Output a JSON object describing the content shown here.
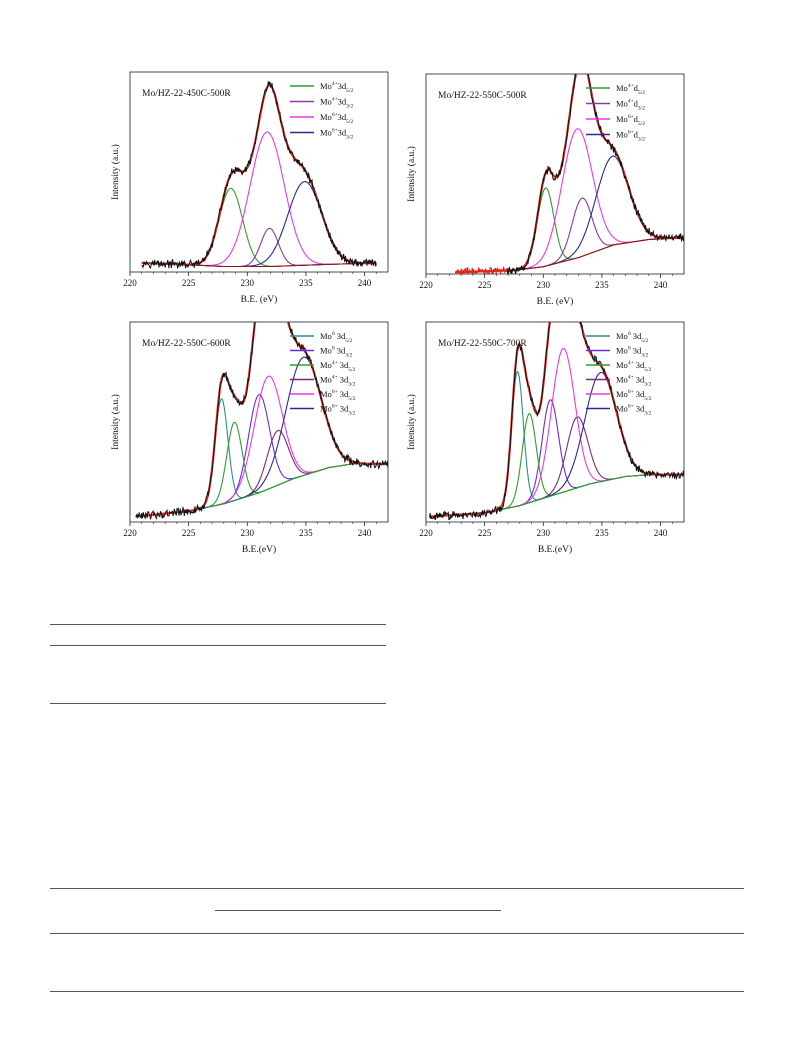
{
  "colors": {
    "raw": "#111111",
    "fit": "#d8302a",
    "background": "#8a1a1a",
    "green": "#2e9e2e",
    "purple": "#8a3aa0",
    "magenta": "#e83ae0",
    "navy": "#2a2a8a",
    "teal": "#2a8f8f",
    "violet": "#6a2ae0",
    "dkpurple": "#7a2a7a",
    "red_bg": "#e0241c"
  },
  "chart_data": [
    {
      "type": "line",
      "title": "Mo/HZ-22-450C-500R",
      "xlabel": "B.E. (eV)",
      "ylabel": "Intensity (a.u.)",
      "xlim": [
        220,
        242
      ],
      "ylim": [
        0,
        1.1
      ],
      "xticks": [
        "220",
        "225",
        "230",
        "235",
        "240"
      ],
      "x_range": [
        221,
        241
      ],
      "raw_color": "raw",
      "background_color": "background",
      "fit_color": "fit",
      "background": [
        [
          221,
          0.05
        ],
        [
          225,
          0.04
        ],
        [
          228,
          0.03
        ],
        [
          232,
          0.03
        ],
        [
          236,
          0.04
        ],
        [
          241,
          0.05
        ]
      ],
      "components": [
        {
          "name": "Mo4+3d5/2",
          "center": 228.6,
          "height": 0.43,
          "width": 1.0,
          "color": "green"
        },
        {
          "name": "Mo4+3d3/2",
          "center": 231.9,
          "height": 0.21,
          "width": 0.75,
          "color": "purple"
        },
        {
          "name": "Mo6+3d5/2",
          "center": 231.7,
          "height": 0.74,
          "width": 1.45,
          "color": "magenta"
        },
        {
          "name": "Mo6+3d3/2",
          "center": 234.9,
          "height": 0.46,
          "width": 1.45,
          "color": "navy"
        }
      ],
      "legend": [
        {
          "sup": "4+",
          "base": "3d",
          "sub": "5/2",
          "color": "green"
        },
        {
          "sup": "4+",
          "base": "3d",
          "sub": "3/2",
          "color": "purple"
        },
        {
          "sup": "6+",
          "base": "3d",
          "sub": "5/2",
          "color": "magenta"
        },
        {
          "sup": "6+",
          "base": "3d",
          "sub": "3/2",
          "color": "navy"
        }
      ]
    },
    {
      "type": "line",
      "title": "Mo/HZ-22-550C-500R",
      "xlabel": "B.E.  (eV)",
      "ylabel": "Intensity (a.u.)",
      "xlim": [
        220,
        242
      ],
      "ylim": [
        0,
        1.1
      ],
      "xticks": [
        "220",
        "225",
        "230",
        "235",
        "240"
      ],
      "x_range": [
        222.5,
        242
      ],
      "raw_color": "raw",
      "raw_lead_color": "red_bg",
      "raw_lead_until": 227,
      "background_color": "background",
      "fit_color": "fit",
      "background": [
        [
          222.5,
          0.01
        ],
        [
          227.5,
          0.02
        ],
        [
          230,
          0.04
        ],
        [
          233,
          0.09
        ],
        [
          236,
          0.16
        ],
        [
          239,
          0.19
        ],
        [
          242,
          0.2
        ]
      ],
      "components": [
        {
          "name": "Mo4+d5/2",
          "center": 230.2,
          "height": 0.43,
          "width": 0.7,
          "color": "green"
        },
        {
          "name": "Mo4+d3/2",
          "center": 233.3,
          "height": 0.32,
          "width": 0.85,
          "color": "purple"
        },
        {
          "name": "Mo6+d5/2",
          "center": 232.9,
          "height": 0.71,
          "width": 1.3,
          "color": "magenta"
        },
        {
          "name": "Mo6+d3/2",
          "center": 235.9,
          "height": 0.49,
          "width": 1.4,
          "color": "navy"
        }
      ],
      "legend": [
        {
          "sup": "4+",
          "base": "d",
          "sub": "5/2",
          "color": "green"
        },
        {
          "sup": "4+",
          "base": "d",
          "sub": "3/2",
          "color": "purple"
        },
        {
          "sup": "6+",
          "base": "d",
          "sub": "5/2",
          "color": "magenta"
        },
        {
          "sup": "6+",
          "base": "d",
          "sub": "3/2",
          "color": "navy"
        }
      ]
    },
    {
      "type": "line",
      "title": "Mo/HZ-22-550C-600R",
      "xlabel": "B.E.(eV)",
      "ylabel": "Intensity (a.u.)",
      "xlim": [
        220,
        242
      ],
      "ylim": [
        0,
        1.1
      ],
      "xticks": [
        "220",
        "225",
        "230",
        "235",
        "240"
      ],
      "x_range": [
        220.5,
        242
      ],
      "raw_color": "raw",
      "background_color": "green",
      "fit_color": "fit",
      "background": [
        [
          220.5,
          0.03
        ],
        [
          225,
          0.06
        ],
        [
          228,
          0.1
        ],
        [
          231,
          0.16
        ],
        [
          234,
          0.24
        ],
        [
          237,
          0.3
        ],
        [
          239,
          0.32
        ],
        [
          242,
          0.32
        ]
      ],
      "components": [
        {
          "name": "Mo0 3d5/2",
          "center": 227.8,
          "height": 0.58,
          "width": 0.55,
          "color": "teal"
        },
        {
          "name": "Mo0 3d3/2",
          "center": 231.0,
          "height": 0.54,
          "width": 0.9,
          "color": "violet"
        },
        {
          "name": "Mo4+ 3d5/2",
          "center": 228.9,
          "height": 0.43,
          "width": 0.65,
          "color": "green"
        },
        {
          "name": "Mo4+ 3d3/2",
          "center": 232.6,
          "height": 0.3,
          "width": 0.9,
          "color": "dkpurple"
        },
        {
          "name": "Mo6+ 3d5/2",
          "center": 231.8,
          "height": 0.62,
          "width": 1.2,
          "color": "magenta"
        },
        {
          "name": "Mo6+ 3d3/2",
          "center": 234.8,
          "height": 0.65,
          "width": 1.5,
          "color": "navy"
        }
      ],
      "legend": [
        {
          "sup": "0",
          "base": " 3d",
          "sub": "5/2",
          "color": "teal"
        },
        {
          "sup": "0",
          "base": " 3d",
          "sub": "3/2",
          "color": "violet"
        },
        {
          "sup": "4+",
          "base": " 3d",
          "sub": "5/2",
          "color": "green"
        },
        {
          "sup": "4+",
          "base": " 3d",
          "sub": "3/2",
          "color": "dkpurple"
        },
        {
          "sup": "6+",
          "base": " 3d",
          "sub": "5/2",
          "color": "magenta"
        },
        {
          "sup": "6+",
          "base": " 3d",
          "sub": "3/2",
          "color": "navy"
        }
      ]
    },
    {
      "type": "line",
      "title": "Mo/HZ-22-550C-700R",
      "xlabel": "B.E.(eV)",
      "ylabel": "Intensity (a.u.)",
      "xlim": [
        220,
        242
      ],
      "ylim": [
        0,
        1.1
      ],
      "xticks": [
        "220",
        "225",
        "230",
        "235",
        "240"
      ],
      "x_range": [
        220.3,
        242
      ],
      "raw_color": "raw",
      "background_color": "green",
      "fit_color": "fit",
      "background": [
        [
          220.3,
          0.03
        ],
        [
          225,
          0.05
        ],
        [
          228,
          0.09
        ],
        [
          231,
          0.15
        ],
        [
          234,
          0.21
        ],
        [
          237,
          0.25
        ],
        [
          239,
          0.26
        ],
        [
          242,
          0.26
        ]
      ],
      "components": [
        {
          "name": "Mo0 3d5/2",
          "center": 227.8,
          "height": 0.74,
          "width": 0.5,
          "color": "teal"
        },
        {
          "name": "Mo0 3d3/2",
          "center": 230.6,
          "height": 0.53,
          "width": 0.7,
          "color": "violet"
        },
        {
          "name": "Mo4+ 3d5/2",
          "center": 228.8,
          "height": 0.49,
          "width": 0.6,
          "color": "green"
        },
        {
          "name": "Mo4+ 3d3/2",
          "center": 232.9,
          "height": 0.39,
          "width": 0.9,
          "color": "dkpurple"
        },
        {
          "name": "Mo6+ 3d5/2",
          "center": 231.7,
          "height": 0.79,
          "width": 1.0,
          "color": "magenta"
        },
        {
          "name": "Mo6+ 3d3/2",
          "center": 234.9,
          "height": 0.6,
          "width": 1.35,
          "color": "navy"
        }
      ],
      "legend": [
        {
          "sup": "0",
          "base": " 3d",
          "sub": "5/2",
          "color": "teal"
        },
        {
          "sup": "0",
          "base": " 3d",
          "sub": "3/2",
          "color": "violet"
        },
        {
          "sup": "4+",
          "base": " 3d",
          "sub": "5/2",
          "color": "green"
        },
        {
          "sup": "4+",
          "base": " 3d",
          "sub": "3/2",
          "color": "dkpurple"
        },
        {
          "sup": "6+",
          "base": " 3d",
          "sub": "5/2",
          "color": "magenta"
        },
        {
          "sup": "6+",
          "base": " 3d",
          "sub": "3/2",
          "color": "navy"
        }
      ]
    }
  ]
}
